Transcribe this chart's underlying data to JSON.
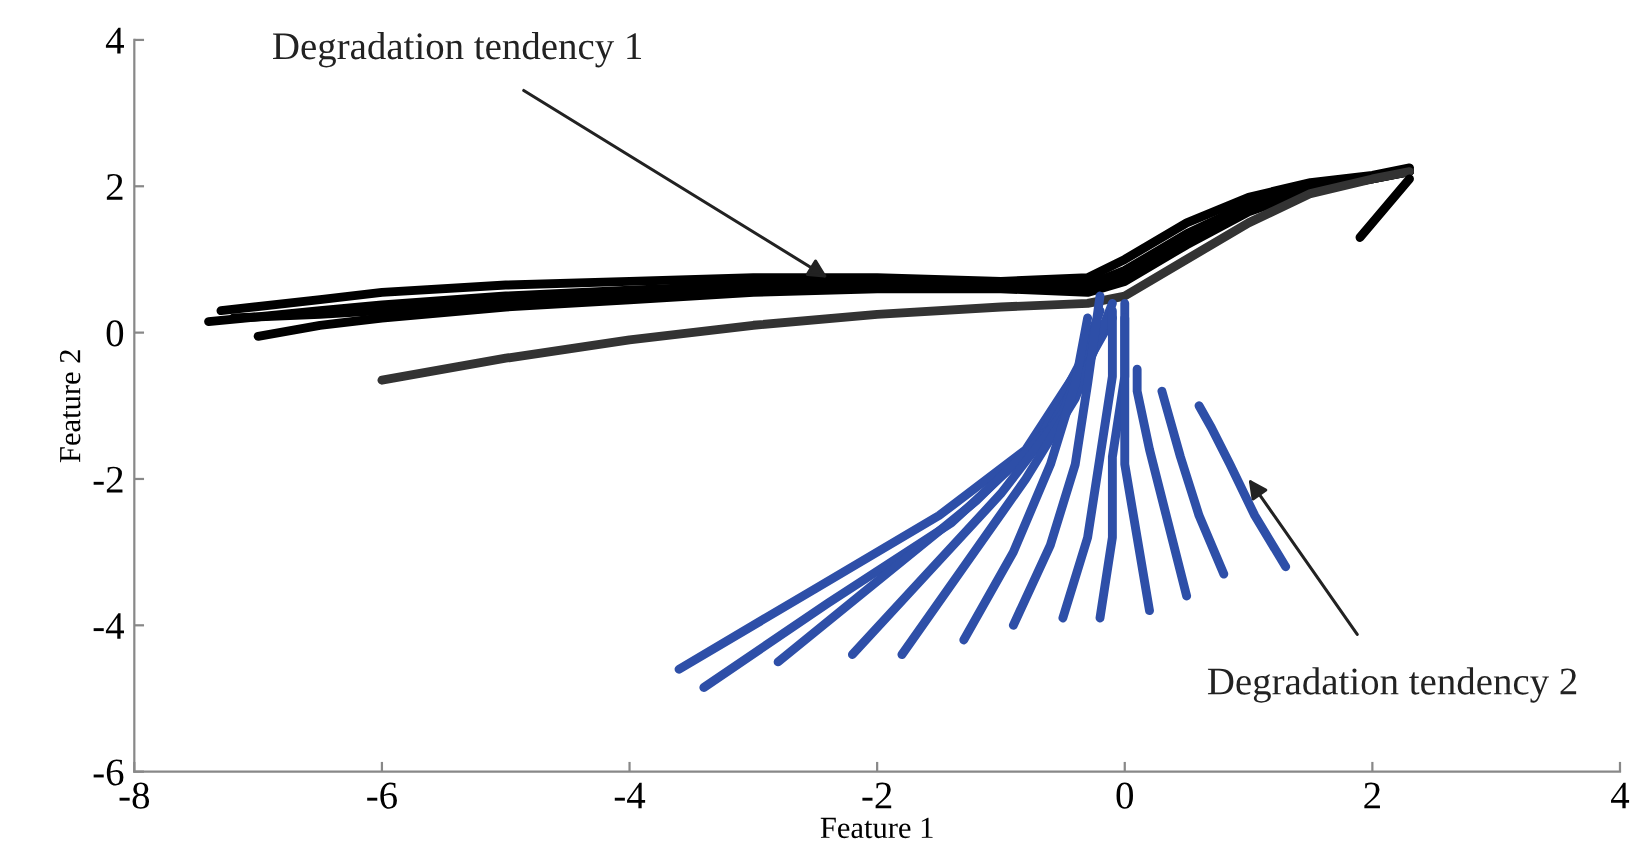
{
  "chart_data": {
    "type": "line",
    "xlabel": "Feature 1",
    "ylabel": "Feature 2",
    "xlim": [
      -8,
      4
    ],
    "ylim": [
      -6,
      4
    ],
    "xticks": [
      -8,
      -6,
      -4,
      -2,
      0,
      2,
      4
    ],
    "yticks": [
      -6,
      -4,
      -2,
      0,
      2,
      4
    ],
    "grid": false,
    "legend": false,
    "line_style": "solid",
    "marker": "none",
    "annotations": [
      {
        "text": "Degradation tendency 1",
        "x": -2.4,
        "y": 0.75
      },
      {
        "text": "Degradation tendency 2",
        "x": 1.0,
        "y": -2.0
      }
    ],
    "series": [
      {
        "color": "#000000",
        "x": [
          -7.3,
          -6.5,
          -6,
          -5,
          -4,
          -3,
          -2,
          -1,
          -0.3,
          0,
          0.5,
          1,
          1.5,
          2,
          2.3
        ],
        "values": [
          0.3,
          0.45,
          0.55,
          0.65,
          0.7,
          0.75,
          0.75,
          0.7,
          0.75,
          1.0,
          1.5,
          1.85,
          2.05,
          2.15,
          2.25
        ]
      },
      {
        "color": "#000000",
        "x": [
          -7.4,
          -6.5,
          -6,
          -5,
          -4,
          -3,
          -2,
          -1,
          -0.3,
          0,
          0.5,
          1,
          1.5,
          2,
          2.3
        ],
        "values": [
          0.15,
          0.3,
          0.38,
          0.5,
          0.58,
          0.65,
          0.68,
          0.65,
          0.65,
          0.85,
          1.35,
          1.75,
          2.0,
          2.12,
          2.2
        ]
      },
      {
        "color": "#000000",
        "x": [
          -7.0,
          -6.5,
          -6,
          -5,
          -4,
          -3,
          -2,
          -1,
          -0.3,
          0,
          0.5,
          1,
          1.5,
          2,
          2.3
        ],
        "values": [
          -0.05,
          0.1,
          0.2,
          0.35,
          0.45,
          0.55,
          0.6,
          0.6,
          0.55,
          0.7,
          1.2,
          1.65,
          1.95,
          2.1,
          2.2
        ]
      },
      {
        "color": "#000000",
        "x": [
          -7.2,
          -6.5,
          -6,
          -5,
          -4,
          -3,
          -2,
          -1,
          -0.3,
          0,
          0.5,
          1,
          1.5,
          2,
          2.3
        ],
        "values": [
          0.2,
          0.25,
          0.3,
          0.42,
          0.52,
          0.6,
          0.65,
          0.62,
          0.6,
          0.75,
          1.25,
          1.7,
          1.97,
          2.1,
          2.2
        ]
      },
      {
        "color": "#333333",
        "x": [
          -6,
          -5,
          -4,
          -3,
          -2,
          -1,
          -0.3,
          0,
          0.5,
          1,
          1.5,
          2,
          2.3
        ],
        "values": [
          -0.65,
          -0.35,
          -0.1,
          0.1,
          0.25,
          0.35,
          0.4,
          0.5,
          1.0,
          1.5,
          1.9,
          2.1,
          2.2
        ]
      },
      {
        "color": "#000000",
        "x": [
          1.9,
          2.1,
          2.3
        ],
        "values": [
          1.3,
          1.7,
          2.1
        ]
      },
      {
        "color": "#2e4fa8",
        "x": [
          -3.6,
          -2.5,
          -1.5,
          -0.8,
          -0.3
        ],
        "values": [
          -4.6,
          -3.5,
          -2.5,
          -1.6,
          -0.3
        ]
      },
      {
        "color": "#2e4fa8",
        "x": [
          -3.4,
          -2.4,
          -1.4,
          -0.7,
          -0.2
        ],
        "values": [
          -4.85,
          -3.7,
          -2.6,
          -1.5,
          0.1
        ]
      },
      {
        "color": "#2e4fa8",
        "x": [
          -2.8,
          -2.0,
          -1.2,
          -0.6,
          -0.1
        ],
        "values": [
          -4.5,
          -3.4,
          -2.3,
          -1.3,
          0.2
        ]
      },
      {
        "color": "#2e4fa8",
        "x": [
          -2.2,
          -1.6,
          -1.0,
          -0.5,
          -0.2
        ],
        "values": [
          -4.4,
          -3.3,
          -2.2,
          -1.1,
          0.3
        ]
      },
      {
        "color": "#2e4fa8",
        "x": [
          -1.8,
          -1.3,
          -0.8,
          -0.4,
          -0.1
        ],
        "values": [
          -4.4,
          -3.2,
          -2.0,
          -0.9,
          0.4
        ]
      },
      {
        "color": "#2e4fa8",
        "x": [
          -1.3,
          -0.9,
          -0.6,
          -0.4,
          -0.3
        ],
        "values": [
          -4.2,
          -3.0,
          -1.8,
          -0.7,
          0.2
        ]
      },
      {
        "color": "#2e4fa8",
        "x": [
          -0.9,
          -0.6,
          -0.4,
          -0.3,
          -0.2
        ],
        "values": [
          -4.0,
          -2.9,
          -1.8,
          -0.7,
          0.5
        ]
      },
      {
        "color": "#2e4fa8",
        "x": [
          -0.5,
          -0.3,
          -0.2,
          -0.1,
          -0.1
        ],
        "values": [
          -3.9,
          -2.8,
          -1.7,
          -0.6,
          0.3
        ]
      },
      {
        "color": "#2e4fa8",
        "x": [
          -0.2,
          -0.1,
          -0.1,
          0.0,
          0.0
        ],
        "values": [
          -3.9,
          -2.8,
          -1.7,
          -0.6,
          0.4
        ]
      },
      {
        "color": "#2e4fa8",
        "x": [
          0.2,
          0.1,
          0.0,
          0.0,
          0.0
        ],
        "values": [
          -3.8,
          -2.8,
          -1.8,
          -0.8,
          0.2
        ]
      },
      {
        "color": "#2e4fa8",
        "x": [
          0.5,
          0.35,
          0.2,
          0.1,
          0.1
        ],
        "values": [
          -3.6,
          -2.6,
          -1.6,
          -0.8,
          -0.5
        ]
      },
      {
        "color": "#2e4fa8",
        "x": [
          0.8,
          0.6,
          0.45,
          0.35,
          0.3
        ],
        "values": [
          -3.3,
          -2.5,
          -1.7,
          -1.1,
          -0.8
        ]
      },
      {
        "color": "#2e4fa8",
        "x": [
          1.3,
          1.05,
          0.85,
          0.7,
          0.6
        ],
        "values": [
          -3.2,
          -2.5,
          -1.8,
          -1.3,
          -1.0
        ]
      }
    ]
  }
}
